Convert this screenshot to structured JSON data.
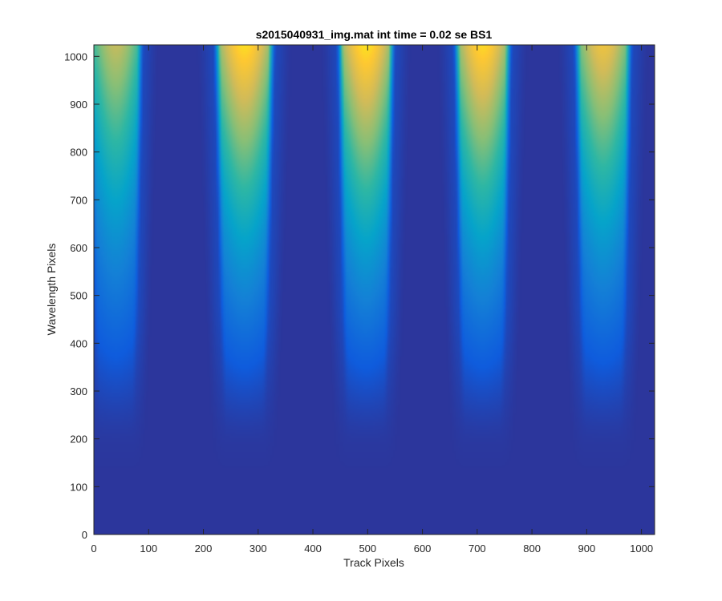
{
  "chart_data": {
    "type": "heatmap",
    "title": "s2015040931_img.mat int time = 0.02 se   BS1",
    "xlabel": "Track Pixels",
    "ylabel": "Wavelength Pixels",
    "xlim": [
      0,
      1024
    ],
    "ylim": [
      0,
      1024
    ],
    "xticks": [
      0,
      100,
      200,
      300,
      400,
      500,
      600,
      700,
      800,
      900,
      1000
    ],
    "yticks": [
      0,
      100,
      200,
      300,
      400,
      500,
      600,
      700,
      800,
      900,
      1000
    ],
    "colormap": "parula",
    "colorscale": [
      "#352a87",
      "#0f5cdd",
      "#1481d6",
      "#06a4ca",
      "#2eb7a4",
      "#87bf77",
      "#d1bb59",
      "#fec832",
      "#f9fb0e"
    ],
    "background_level": 0.03,
    "bands": [
      {
        "center": 40,
        "peak_level": 0.65,
        "width_top": 90,
        "width_bottom": 60
      },
      {
        "center": 275,
        "peak_level": 0.85,
        "width_top": 100,
        "width_bottom": 65
      },
      {
        "center": 497,
        "peak_level": 0.86,
        "width_top": 95,
        "width_bottom": 65
      },
      {
        "center": 710,
        "peak_level": 0.84,
        "width_top": 95,
        "width_bottom": 65
      },
      {
        "center": 930,
        "peak_level": 0.75,
        "width_top": 95,
        "width_bottom": 65
      }
    ]
  }
}
